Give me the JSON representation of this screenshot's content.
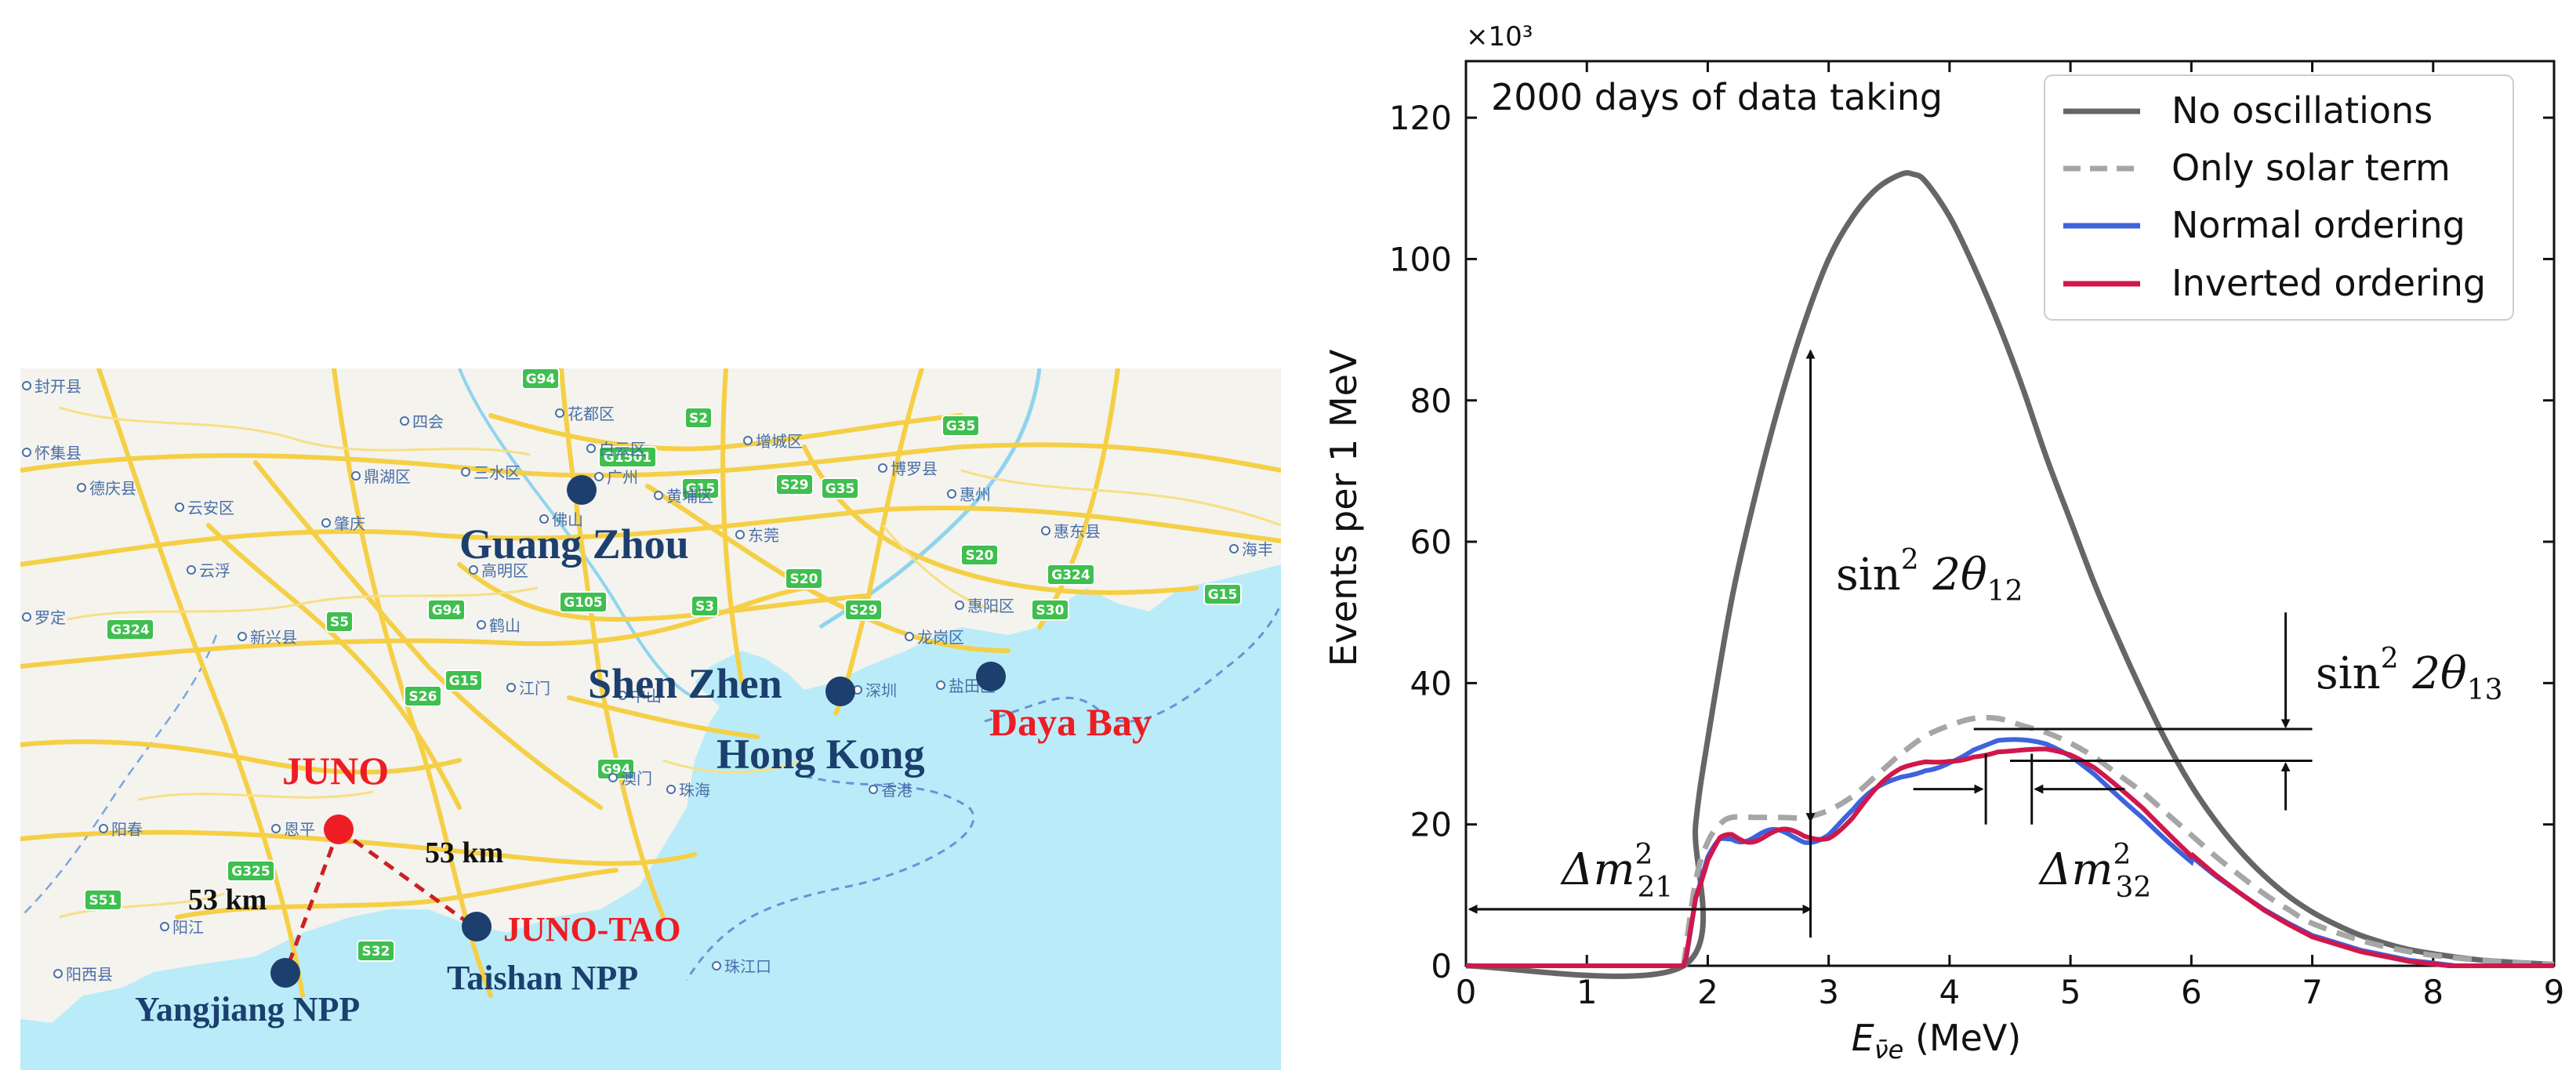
{
  "map": {
    "sites": [
      {
        "id": "guangzhou",
        "label": "Guang Zhou"
      },
      {
        "id": "shenzhen",
        "label": "Shen Zhen"
      },
      {
        "id": "hongkong",
        "label": "Hong Kong"
      },
      {
        "id": "dayabay",
        "label": "Daya Bay"
      },
      {
        "id": "juno",
        "label": "JUNO"
      },
      {
        "id": "junotao",
        "label": "JUNO-TAO"
      },
      {
        "id": "taishan",
        "label": "Taishan NPP"
      },
      {
        "id": "yangjiang",
        "label": "Yangjiang NPP"
      }
    ],
    "distances": [
      {
        "id": "juno-yangjiang",
        "label": "53 km"
      },
      {
        "id": "juno-taishan",
        "label": "53 km"
      }
    ],
    "place_labels": [
      {
        "id": "kaiping",
        "label": "封开县"
      },
      {
        "id": "huaiji",
        "label": "怀集县"
      },
      {
        "id": "deqing",
        "label": "德庆县"
      },
      {
        "id": "yunan",
        "label": "云安区"
      },
      {
        "id": "zhaoqing",
        "label": "肇庆"
      },
      {
        "id": "yunfu",
        "label": "云浮"
      },
      {
        "id": "luoding",
        "label": "罗定"
      },
      {
        "id": "xinxing",
        "label": "新兴县"
      },
      {
        "id": "gaoming",
        "label": "高明区"
      },
      {
        "id": "heshan",
        "label": "鹤山"
      },
      {
        "id": "jiangmen",
        "label": "江门"
      },
      {
        "id": "enping",
        "label": "恩平"
      },
      {
        "id": "yangchun",
        "label": "阳春"
      },
      {
        "id": "yangjiang-city",
        "label": "阳江"
      },
      {
        "id": "yangxi",
        "label": "阳西县"
      },
      {
        "id": "sihui",
        "label": "四会"
      },
      {
        "id": "dinghu",
        "label": "鼎湖区"
      },
      {
        "id": "sanshui",
        "label": "三水区"
      },
      {
        "id": "huadu",
        "label": "花都区"
      },
      {
        "id": "baiyun",
        "label": "白云区"
      },
      {
        "id": "zengcheng",
        "label": "增城区"
      },
      {
        "id": "huangpu",
        "label": "黄埔区"
      },
      {
        "id": "dongguan",
        "label": "东莞"
      },
      {
        "id": "boluo",
        "label": "博罗县"
      },
      {
        "id": "huizhou",
        "label": "惠州"
      },
      {
        "id": "huidong",
        "label": "惠东县"
      },
      {
        "id": "huiyang",
        "label": "惠阳区"
      },
      {
        "id": "longgang",
        "label": "龙岗区"
      },
      {
        "id": "yantian",
        "label": "盐田区"
      },
      {
        "id": "shenzhen-cn",
        "label": "深圳"
      },
      {
        "id": "zhongshan",
        "label": "中山"
      },
      {
        "id": "zhuhai",
        "label": "珠海"
      },
      {
        "id": "macau",
        "label": "澳门"
      },
      {
        "id": "hk-cn",
        "label": "香港"
      },
      {
        "id": "zhujiangkou",
        "label": "珠江口"
      },
      {
        "id": "foshan",
        "label": "佛山"
      },
      {
        "id": "guangzhou-cn",
        "label": "广州"
      },
      {
        "id": "haifeng",
        "label": "海丰"
      }
    ],
    "highway_labels": [
      {
        "id": "g94a",
        "label": "G94"
      },
      {
        "id": "g1501",
        "label": "G1501"
      },
      {
        "id": "s2",
        "label": "S2"
      },
      {
        "id": "g35",
        "label": "G35"
      },
      {
        "id": "s29a",
        "label": "S29"
      },
      {
        "id": "g35b",
        "label": "G35"
      },
      {
        "id": "g15a",
        "label": "G15"
      },
      {
        "id": "s20",
        "label": "S20"
      },
      {
        "id": "g324a",
        "label": "G324"
      },
      {
        "id": "g15b",
        "label": "G15"
      },
      {
        "id": "g324b",
        "label": "G324"
      },
      {
        "id": "s5",
        "label": "S5"
      },
      {
        "id": "g94b",
        "label": "G94"
      },
      {
        "id": "g105",
        "label": "G105"
      },
      {
        "id": "s3",
        "label": "S3"
      },
      {
        "id": "s20b",
        "label": "S20"
      },
      {
        "id": "s29b",
        "label": "S29"
      },
      {
        "id": "s30",
        "label": "S30"
      },
      {
        "id": "s26",
        "label": "S26"
      },
      {
        "id": "g15c",
        "label": "G15"
      },
      {
        "id": "g94c",
        "label": "G94"
      },
      {
        "id": "g325",
        "label": "G325"
      },
      {
        "id": "s51",
        "label": "S51"
      },
      {
        "id": "s32",
        "label": "S32"
      }
    ],
    "colors": {
      "sea": "#b8ecf8",
      "land": "#f6f5f0",
      "road": "#f5d24a",
      "site": "#1c3f6e",
      "juno": "#ee1c24",
      "highway": "#3fbf4f"
    }
  },
  "chart_data": {
    "type": "line",
    "annotation": "2000 days of data taking",
    "scale_label": "×10³",
    "xlabel_main": "E",
    "xlabel_sub": "ν̄e",
    "xlabel_unit": " (MeV)",
    "ylabel": "Events per 1 MeV",
    "xlim": [
      0,
      9
    ],
    "ylim": [
      0,
      128
    ],
    "xticks": [
      0,
      1,
      2,
      3,
      4,
      5,
      6,
      7,
      8,
      9
    ],
    "yticks": [
      0,
      20,
      40,
      60,
      80,
      100,
      120
    ],
    "legend": {
      "position": "top-right"
    },
    "grid": false,
    "series": [
      {
        "name": "No oscillations",
        "color": "#666666",
        "style": "solid",
        "x": [
          0,
          1.8,
          1.9,
          2.0,
          2.2,
          2.4,
          2.6,
          2.8,
          3.0,
          3.2,
          3.4,
          3.6,
          3.7,
          3.8,
          4.0,
          4.2,
          4.4,
          4.6,
          4.8,
          5.0,
          5.2,
          5.4,
          5.6,
          5.8,
          6.0,
          6.2,
          6.4,
          6.6,
          6.8,
          7.0,
          7.2,
          7.4,
          7.6,
          7.8,
          8.0,
          8.2,
          8.4,
          8.6,
          8.8,
          9.0
        ],
        "y": [
          0,
          0,
          20,
          32,
          52,
          67,
          80,
          91,
          100,
          106,
          110,
          112,
          112,
          111,
          106,
          99,
          91,
          82,
          72,
          63,
          54,
          46,
          38.5,
          31.5,
          25.5,
          20.5,
          16.3,
          12.8,
          9.9,
          7.6,
          5.8,
          4.3,
          3.2,
          2.3,
          1.7,
          1.2,
          0.8,
          0.55,
          0.35,
          0.2
        ]
      },
      {
        "name": "Only solar term",
        "color": "#a6a6a6",
        "style": "dashed",
        "x": [
          1.8,
          1.9,
          2.0,
          2.1,
          2.2,
          2.4,
          2.6,
          2.8,
          3.0,
          3.2,
          3.4,
          3.6,
          3.8,
          4.0,
          4.2,
          4.4,
          4.6,
          4.8,
          5.0,
          5.2,
          5.4,
          5.6,
          5.8,
          6.0,
          6.2,
          6.4,
          6.6,
          6.8,
          7.0,
          7.4,
          7.8,
          8.2,
          8.6,
          9.0
        ],
        "y": [
          0,
          12,
          17.5,
          20,
          21,
          21,
          21,
          21,
          22,
          24,
          27,
          30,
          32.5,
          34,
          35,
          35,
          34,
          33,
          31.5,
          29.5,
          27,
          24.5,
          21.5,
          18.5,
          15.5,
          12.8,
          10.2,
          8,
          6,
          3.6,
          2,
          1.1,
          0.5,
          0.2
        ]
      },
      {
        "name": "Normal ordering",
        "color": "#3d63dd",
        "style": "solid",
        "formula": "low_energy_oscillation"
      },
      {
        "name": "Inverted ordering",
        "color": "#d0184a",
        "style": "solid",
        "formula": "low_energy_oscillation"
      }
    ],
    "annotations": [
      {
        "id": "s12",
        "base": "sin",
        "sup": "2",
        "mid": " 2θ",
        "sub": "12"
      },
      {
        "id": "s13",
        "base": "sin",
        "sup": "2",
        "mid": " 2θ",
        "sub": "13"
      },
      {
        "id": "dm21",
        "base": "Δm",
        "sup": "2",
        "sub": "21"
      },
      {
        "id": "dm32",
        "base": "Δm",
        "sup": "2",
        "sub": "32"
      }
    ]
  }
}
